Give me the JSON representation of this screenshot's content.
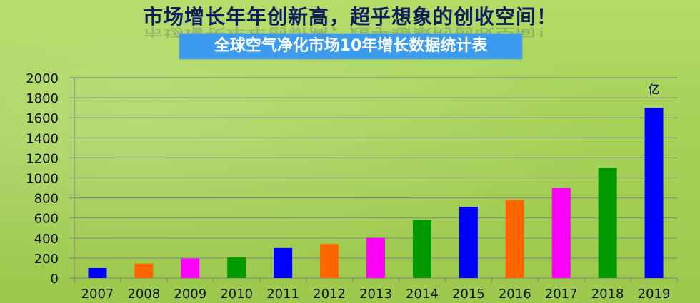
{
  "headline": "市场增长年年创新高，超乎想象的创收空间！",
  "chart_data": {
    "type": "bar",
    "title": "全球空气净化市场10年增长数据统计表",
    "unit_label": "亿",
    "categories": [
      "2007",
      "2008",
      "2009",
      "2010",
      "2011",
      "2012",
      "2013",
      "2014",
      "2015",
      "2016",
      "2017",
      "2018",
      "2019"
    ],
    "values": [
      100,
      145,
      195,
      205,
      300,
      340,
      400,
      580,
      710,
      780,
      900,
      1100,
      1700
    ],
    "colors": [
      "#0000ff",
      "#ff6600",
      "#ff00ff",
      "#009900",
      "#0000ff",
      "#ff6600",
      "#ff00ff",
      "#009900",
      "#0000ff",
      "#ff6600",
      "#ff00ff",
      "#009900",
      "#0000ff"
    ],
    "ylim": [
      0,
      2000
    ],
    "yticks": [
      0,
      200,
      400,
      600,
      800,
      1000,
      1200,
      1400,
      1600,
      1800,
      2000
    ],
    "grid": true,
    "legend": "none"
  }
}
